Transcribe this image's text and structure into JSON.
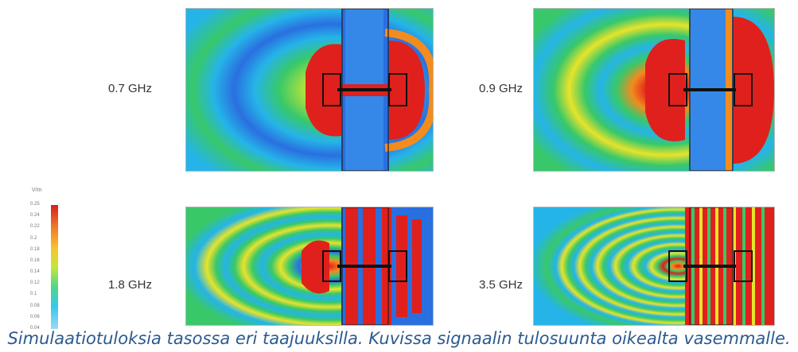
{
  "panels": [
    {
      "label": "0.7 GHz"
    },
    {
      "label": "0.9 GHz"
    },
    {
      "label": "1.8 GHz"
    },
    {
      "label": "3.5 GHz"
    }
  ],
  "colorbar": {
    "unit": "V/m",
    "ticks": [
      "0.25",
      "0.24",
      "0.22",
      "0.2",
      "0.18",
      "0.16",
      "0.14",
      "0.12",
      "0.1",
      "0.08",
      "0.06",
      "0.04"
    ],
    "colors": [
      "#d71f1f",
      "#f07a2a",
      "#f6c52c",
      "#c6e63c",
      "#4fd68b",
      "#36c8e8",
      "#9fd7f5"
    ]
  },
  "caption": "Simulaatiotuloksia tasossa eri taajuuksilla. Kuvissa signaalin tulosuunta oikealta vasemmalle.",
  "colors": {
    "red": "#e0201c",
    "orange": "#f28c1e",
    "yellow": "#e8e32a",
    "green": "#38c86a",
    "cyan": "#25b4e8",
    "blue": "#2a6fe0",
    "darkblue": "#1f3fbf"
  }
}
